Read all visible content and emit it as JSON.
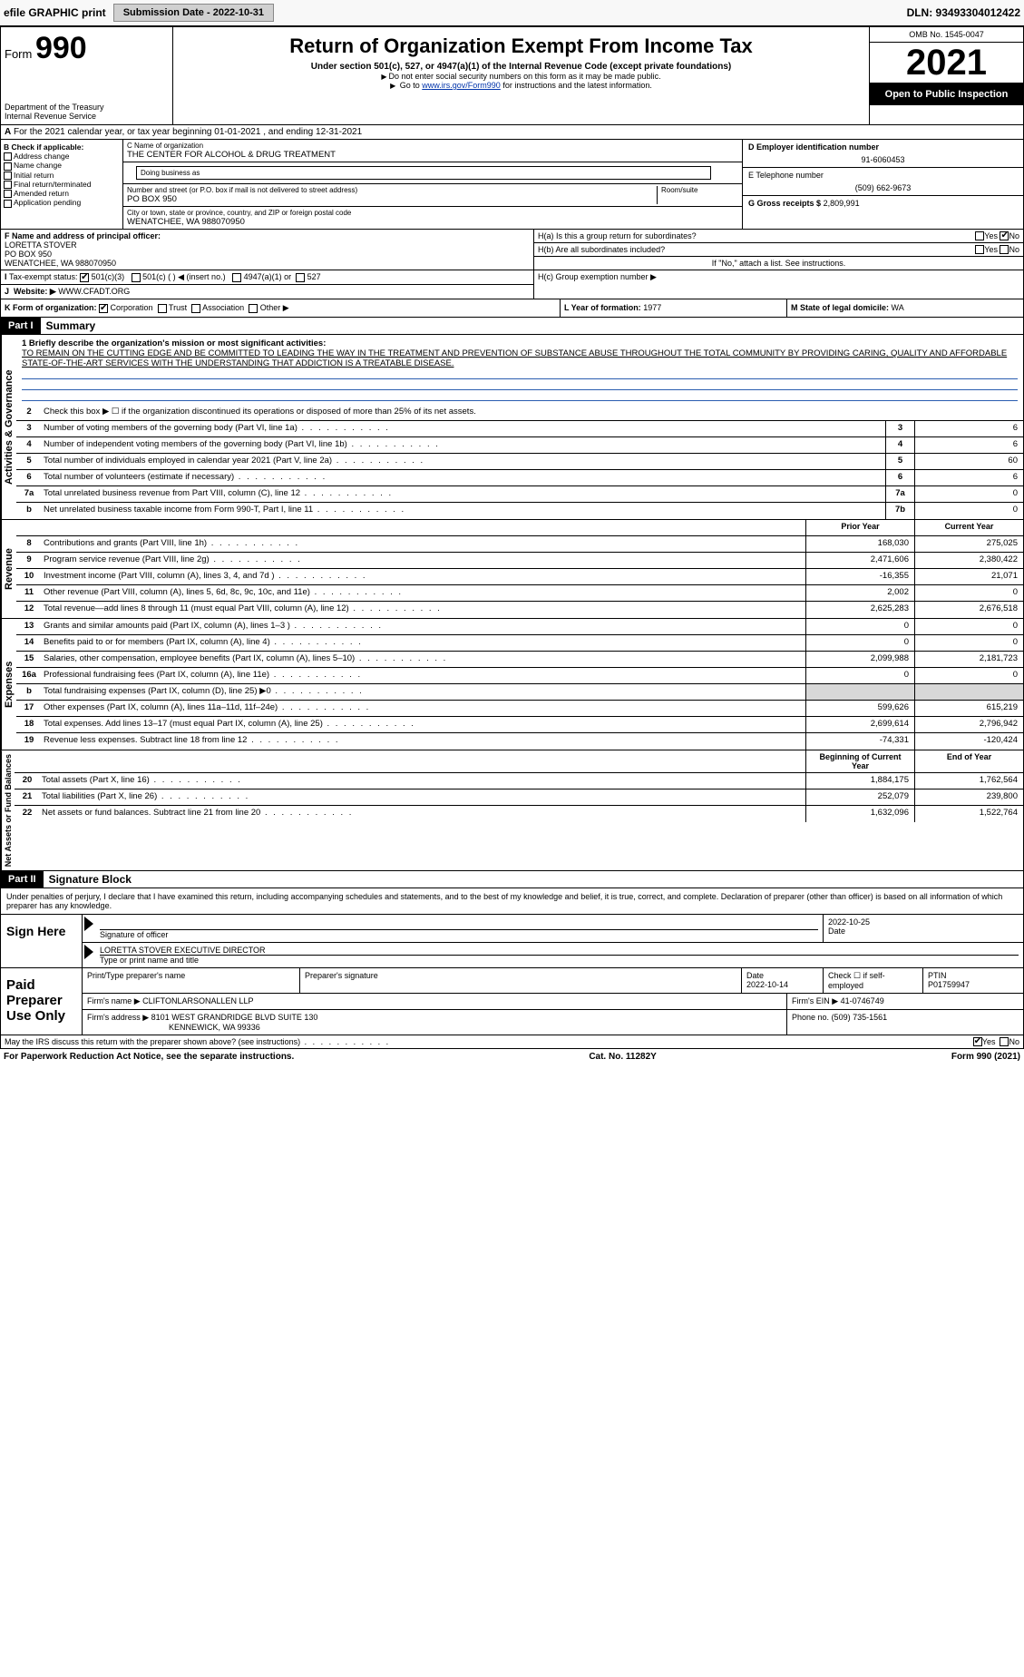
{
  "topbar": {
    "efile": "efile GRAPHIC print",
    "submission": "Submission Date - 2022-10-31",
    "dln": "DLN: 93493304012422"
  },
  "header": {
    "form_prefix": "Form",
    "form_num": "990",
    "dept1": "Department of the Treasury",
    "dept2": "Internal Revenue Service",
    "title": "Return of Organization Exempt From Income Tax",
    "subtitle": "Under section 501(c), 527, or 4947(a)(1) of the Internal Revenue Code (except private foundations)",
    "note1": "Do not enter social security numbers on this form as it may be made public.",
    "note2_pre": "Go to ",
    "note2_link": "www.irs.gov/Form990",
    "note2_post": " for instructions and the latest information.",
    "omb": "OMB No. 1545-0047",
    "year": "2021",
    "open": "Open to Public Inspection"
  },
  "row_a": {
    "text": "For the 2021 calendar year, or tax year beginning 01-01-2021   , and ending 12-31-2021",
    "prefix": "A"
  },
  "col_b": {
    "title": "B Check if applicable:",
    "opts": [
      "Address change",
      "Name change",
      "Initial return",
      "Final return/terminated",
      "Amended return",
      "Application pending"
    ]
  },
  "col_c": {
    "name_lbl": "C Name of organization",
    "name": "THE CENTER FOR ALCOHOL & DRUG TREATMENT",
    "dba_lbl": "Doing business as",
    "dba": "",
    "street_lbl": "Number and street (or P.O. box if mail is not delivered to street address)",
    "room_lbl": "Room/suite",
    "street": "PO BOX 950",
    "city_lbl": "City or town, state or province, country, and ZIP or foreign postal code",
    "city": "WENATCHEE, WA  988070950"
  },
  "col_d": {
    "ein_lbl": "D Employer identification number",
    "ein": "91-6060453",
    "tel_lbl": "E Telephone number",
    "tel": "(509) 662-9673",
    "gross_lbl": "G Gross receipts $",
    "gross": "2,809,991"
  },
  "row_f": {
    "f_lbl": "F  Name and address of principal officer:",
    "f_name": "LORETTA STOVER",
    "f_addr1": "PO BOX 950",
    "f_addr2": "WENATCHEE, WA  988070950",
    "i_lbl": "Tax-exempt status:",
    "i_501c3": "501(c)(3)",
    "i_501c": "501(c) (  ) ◀ (insert no.)",
    "i_4947": "4947(a)(1) or",
    "i_527": "527",
    "j_lbl": "Website: ▶",
    "j_val": "WWW.CFADT.ORG"
  },
  "row_h": {
    "ha": "H(a)  Is this a group return for subordinates?",
    "hb": "H(b)  Are all subordinates included?",
    "hb_note": "If \"No,\" attach a list. See instructions.",
    "hc": "H(c)  Group exemption number ▶",
    "yes": "Yes",
    "no": "No"
  },
  "row_k": {
    "k_lbl": "K Form of organization:",
    "k_corp": "Corporation",
    "k_trust": "Trust",
    "k_assoc": "Association",
    "k_other": "Other ▶",
    "l_lbl": "L Year of formation:",
    "l_val": "1977",
    "m_lbl": "M State of legal domicile:",
    "m_val": "WA"
  },
  "part1": {
    "hdr": "Part I",
    "title": "Summary",
    "mission_lbl": "1  Briefly describe the organization's mission or most significant activities:",
    "mission": "TO REMAIN ON THE CUTTING EDGE AND BE COMMITTED TO LEADING THE WAY IN THE TREATMENT AND PREVENTION OF SUBSTANCE ABUSE THROUGHOUT THE TOTAL COMMUNITY BY PROVIDING CARING, QUALITY AND AFFORDABLE STATE-OF-THE-ART SERVICES WITH THE UNDERSTANDING THAT ADDICTION IS A TREATABLE DISEASE.",
    "side_gov": "Activities & Governance",
    "side_rev": "Revenue",
    "side_exp": "Expenses",
    "side_net": "Net Assets or Fund Balances",
    "lines_gov": [
      {
        "n": "2",
        "t": "Check this box ▶ ☐  if the organization discontinued its operations or disposed of more than 25% of its net assets."
      },
      {
        "n": "3",
        "t": "Number of voting members of the governing body (Part VI, line 1a)",
        "box": "3",
        "v": "6"
      },
      {
        "n": "4",
        "t": "Number of independent voting members of the governing body (Part VI, line 1b)",
        "box": "4",
        "v": "6"
      },
      {
        "n": "5",
        "t": "Total number of individuals employed in calendar year 2021 (Part V, line 2a)",
        "box": "5",
        "v": "60"
      },
      {
        "n": "6",
        "t": "Total number of volunteers (estimate if necessary)",
        "box": "6",
        "v": "6"
      },
      {
        "n": "7a",
        "t": "Total unrelated business revenue from Part VIII, column (C), line 12",
        "box": "7a",
        "v": "0"
      },
      {
        "n": "b",
        "t": "Net unrelated business taxable income from Form 990-T, Part I, line 11",
        "box": "7b",
        "v": "0"
      }
    ],
    "col_prior": "Prior Year",
    "col_curr": "Current Year",
    "lines_rev": [
      {
        "n": "8",
        "t": "Contributions and grants (Part VIII, line 1h)",
        "p": "168,030",
        "c": "275,025"
      },
      {
        "n": "9",
        "t": "Program service revenue (Part VIII, line 2g)",
        "p": "2,471,606",
        "c": "2,380,422"
      },
      {
        "n": "10",
        "t": "Investment income (Part VIII, column (A), lines 3, 4, and 7d )",
        "p": "-16,355",
        "c": "21,071"
      },
      {
        "n": "11",
        "t": "Other revenue (Part VIII, column (A), lines 5, 6d, 8c, 9c, 10c, and 11e)",
        "p": "2,002",
        "c": "0"
      },
      {
        "n": "12",
        "t": "Total revenue—add lines 8 through 11 (must equal Part VIII, column (A), line 12)",
        "p": "2,625,283",
        "c": "2,676,518"
      }
    ],
    "lines_exp": [
      {
        "n": "13",
        "t": "Grants and similar amounts paid (Part IX, column (A), lines 1–3 )",
        "p": "0",
        "c": "0"
      },
      {
        "n": "14",
        "t": "Benefits paid to or for members (Part IX, column (A), line 4)",
        "p": "0",
        "c": "0"
      },
      {
        "n": "15",
        "t": "Salaries, other compensation, employee benefits (Part IX, column (A), lines 5–10)",
        "p": "2,099,988",
        "c": "2,181,723"
      },
      {
        "n": "16a",
        "t": "Professional fundraising fees (Part IX, column (A), line 11e)",
        "p": "0",
        "c": "0"
      },
      {
        "n": "b",
        "t": "Total fundraising expenses (Part IX, column (D), line 25) ▶0",
        "p": "",
        "c": "",
        "shade": true
      },
      {
        "n": "17",
        "t": "Other expenses (Part IX, column (A), lines 11a–11d, 11f–24e)",
        "p": "599,626",
        "c": "615,219"
      },
      {
        "n": "18",
        "t": "Total expenses. Add lines 13–17 (must equal Part IX, column (A), line 25)",
        "p": "2,699,614",
        "c": "2,796,942"
      },
      {
        "n": "19",
        "t": "Revenue less expenses. Subtract line 18 from line 12",
        "p": "-74,331",
        "c": "-120,424"
      }
    ],
    "col_beg": "Beginning of Current Year",
    "col_end": "End of Year",
    "lines_net": [
      {
        "n": "20",
        "t": "Total assets (Part X, line 16)",
        "p": "1,884,175",
        "c": "1,762,564"
      },
      {
        "n": "21",
        "t": "Total liabilities (Part X, line 26)",
        "p": "252,079",
        "c": "239,800"
      },
      {
        "n": "22",
        "t": "Net assets or fund balances. Subtract line 21 from line 20",
        "p": "1,632,096",
        "c": "1,522,764"
      }
    ]
  },
  "part2": {
    "hdr": "Part II",
    "title": "Signature Block",
    "decl": "Under penalties of perjury, I declare that I have examined this return, including accompanying schedules and statements, and to the best of my knowledge and belief, it is true, correct, and complete. Declaration of preparer (other than officer) is based on all information of which preparer has any knowledge."
  },
  "sign": {
    "here": "Sign Here",
    "sig_lbl": "Signature of officer",
    "date_lbl": "Date",
    "date": "2022-10-25",
    "name": "LORETTA STOVER  EXECUTIVE DIRECTOR",
    "name_lbl": "Type or print name and title"
  },
  "paid": {
    "title": "Paid Preparer Use Only",
    "r1_c1": "Print/Type preparer's name",
    "r1_c2": "Preparer's signature",
    "r1_c3_lbl": "Date",
    "r1_c3": "2022-10-14",
    "r1_c4": "Check ☐ if self-employed",
    "r1_c5_lbl": "PTIN",
    "r1_c5": "P01759947",
    "r2_lbl": "Firm's name    ▶",
    "r2_val": "CLIFTONLARSONALLEN LLP",
    "r2_ein_lbl": "Firm's EIN ▶",
    "r2_ein": "41-0746749",
    "r3_lbl": "Firm's address ▶",
    "r3_val1": "8101 WEST GRANDRIDGE BLVD SUITE 130",
    "r3_val2": "KENNEWICK, WA  99336",
    "r3_tel_lbl": "Phone no.",
    "r3_tel": "(509) 735-1561"
  },
  "footer": {
    "discuss": "May the IRS discuss this return with the preparer shown above? (see instructions)",
    "yes": "Yes",
    "no": "No",
    "pra": "For Paperwork Reduction Act Notice, see the separate instructions.",
    "cat": "Cat. No. 11282Y",
    "form": "Form 990 (2021)"
  }
}
